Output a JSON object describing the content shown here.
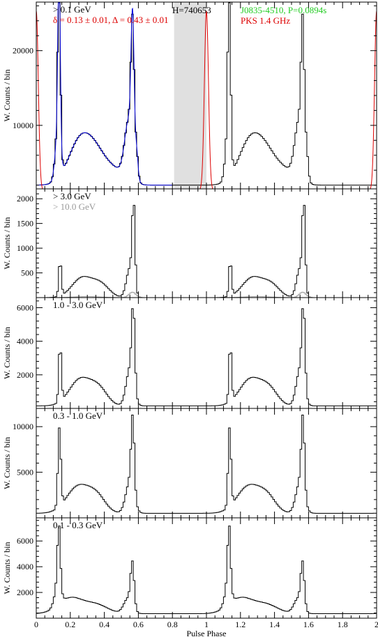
{
  "chart_data": {
    "type": "line",
    "xlabel": "Pulse Phase",
    "xlim": [
      0,
      2
    ],
    "xticks": [
      "0",
      "0.2",
      "0.4",
      "0.6",
      "0.8",
      "1",
      "1.2",
      "1.4",
      "1.6",
      "1.8",
      "2"
    ],
    "colors": {
      "data": "#000000",
      "fit": "#0000dd",
      "radio": "#dd0000",
      "source": "#22cc22",
      "background": "#c0c0c0",
      "faint": "#999999"
    },
    "panels": [
      {
        "id": "gt01",
        "ylabel": "W. Counts / bin",
        "ylim": [
          1500,
          26500
        ],
        "yticks": [
          10000,
          20000
        ],
        "labels": [
          "> 0.1 GeV",
          "δ = 0.13 ± 0.01, Δ = 0.43 ± 0.01"
        ],
        "label_colors": [
          "#000000",
          "#dd0000"
        ],
        "extra_labels": {
          "htest": "H=740653",
          "source": "J0835-4510, P=0.0894s",
          "radio": "PKS 1.4 GHz"
        },
        "off_pulse": [
          0.81,
          1.0
        ],
        "peaks": [
          {
            "phase": 0.134,
            "height": 24000,
            "width": 0.007
          },
          {
            "phase": 0.126,
            "height": 6000,
            "width": 0.015
          },
          {
            "phase": 0.566,
            "height": 17500,
            "width": 0.009
          },
          {
            "phase": 0.545,
            "height": 8000,
            "width": 0.025
          },
          {
            "phase": 0.59,
            "height": 3000,
            "width": 0.008
          },
          {
            "phase": 0.26,
            "height": 6000,
            "width": 0.07
          },
          {
            "phase": 0.36,
            "height": 3000,
            "width": 0.06
          },
          {
            "phase": 0.47,
            "height": 1700,
            "width": 0.06
          }
        ],
        "baseline": 2000,
        "fit": true,
        "radio": {
          "phase": 0.0,
          "height": 24000,
          "width": 0.012
        }
      },
      {
        "id": "gt3",
        "ylabel": "W. Counts / bin",
        "ylim": [
          0,
          2200
        ],
        "yticks": [
          500,
          1000,
          1500,
          2000
        ],
        "labels": [
          "> 3.0 GeV",
          "> 10.0 GeV"
        ],
        "label_colors": [
          "#000000",
          "#999999"
        ],
        "peaks": [
          {
            "phase": 0.14,
            "height": 800,
            "width": 0.007
          },
          {
            "phase": 0.572,
            "height": 1800,
            "width": 0.008
          },
          {
            "phase": 0.55,
            "height": 600,
            "width": 0.02
          },
          {
            "phase": 0.27,
            "height": 400,
            "width": 0.06
          },
          {
            "phase": 0.38,
            "height": 250,
            "width": 0.05
          }
        ],
        "baseline": 0,
        "secondary": {
          "peaks": [
            {
              "phase": 0.565,
              "height": 110,
              "width": 0.02
            },
            {
              "phase": 0.3,
              "height": 20,
              "width": 0.08
            }
          ],
          "baseline": 0
        }
      },
      {
        "id": "1to3",
        "ylabel": "W. Counts / bin",
        "ylim": [
          0,
          6600
        ],
        "yticks": [
          2000,
          4000,
          6000
        ],
        "labels": [
          "1.0 - 3.0 GeV"
        ],
        "label_colors": [
          "#000000"
        ],
        "peaks": [
          {
            "phase": 0.14,
            "height": 3800,
            "width": 0.007
          },
          {
            "phase": 0.57,
            "height": 4900,
            "width": 0.009
          },
          {
            "phase": 0.55,
            "height": 2200,
            "width": 0.022
          },
          {
            "phase": 0.26,
            "height": 1600,
            "width": 0.065
          },
          {
            "phase": 0.37,
            "height": 900,
            "width": 0.05
          }
        ],
        "baseline": 150
      },
      {
        "id": "03to1",
        "ylabel": "W. Counts / bin",
        "ylim": [
          0,
          12000
        ],
        "yticks": [
          5000,
          10000
        ],
        "labels": [
          "0.3 - 1.0 GeV"
        ],
        "label_colors": [
          "#000000"
        ],
        "peaks": [
          {
            "phase": 0.136,
            "height": 9200,
            "width": 0.008
          },
          {
            "phase": 0.567,
            "height": 8500,
            "width": 0.009
          },
          {
            "phase": 0.55,
            "height": 3500,
            "width": 0.024
          },
          {
            "phase": 0.25,
            "height": 3000,
            "width": 0.07
          },
          {
            "phase": 0.36,
            "height": 1500,
            "width": 0.05
          }
        ],
        "baseline": 500
      },
      {
        "id": "01to03",
        "ylabel": "W. Counts / bin",
        "ylim": [
          0,
          7800
        ],
        "yticks": [
          2000,
          4000,
          6000
        ],
        "labels": [
          "0.1 - 0.3 GeV"
        ],
        "label_colors": [
          "#000000"
        ],
        "peaks": [
          {
            "phase": 0.133,
            "height": 5200,
            "width": 0.008
          },
          {
            "phase": 0.125,
            "height": 1500,
            "width": 0.018
          },
          {
            "phase": 0.565,
            "height": 3500,
            "width": 0.01
          },
          {
            "phase": 0.54,
            "height": 1200,
            "width": 0.025
          },
          {
            "phase": 0.2,
            "height": 1200,
            "width": 0.07
          },
          {
            "phase": 0.35,
            "height": 700,
            "width": 0.07
          }
        ],
        "baseline": 350
      }
    ]
  }
}
